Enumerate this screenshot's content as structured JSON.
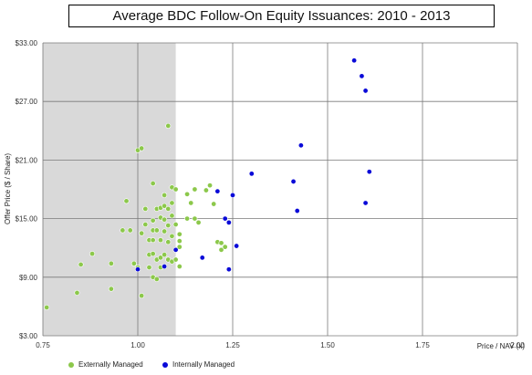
{
  "chart_data": {
    "type": "scatter",
    "title": "Average BDC Follow-On Equity Issuances: 2010 - 2013",
    "xlabel": "Price / NAV (x)",
    "ylabel": "Offer Price ($ / Share)",
    "xlim": [
      0.75,
      2.0
    ],
    "ylim": [
      3.0,
      33.0
    ],
    "x_ticks": [
      0.75,
      1.0,
      1.25,
      1.5,
      1.75,
      2.0
    ],
    "x_tick_labels": [
      "0.75",
      "1.00",
      "1.25",
      "1.50",
      "1.75",
      "2.00"
    ],
    "y_ticks": [
      3,
      9,
      15,
      21,
      27,
      33
    ],
    "y_tick_labels": [
      "$3.00",
      "$9.00",
      "$15.00",
      "$21.00",
      "$27.00",
      "$33.00"
    ],
    "grid": true,
    "shaded_region": {
      "x_from": 0.75,
      "x_to": 1.1,
      "color": "#d9d9d9"
    },
    "legend_position": "bottom-left",
    "series": [
      {
        "name": "Externally Managed",
        "color": "#8cc84b",
        "points": [
          [
            0.76,
            5.9
          ],
          [
            0.84,
            7.4
          ],
          [
            0.85,
            10.3
          ],
          [
            0.88,
            11.4
          ],
          [
            0.93,
            10.4
          ],
          [
            0.93,
            7.8
          ],
          [
            0.96,
            13.8
          ],
          [
            0.97,
            16.8
          ],
          [
            0.98,
            13.8
          ],
          [
            0.99,
            10.4
          ],
          [
            1.0,
            22.0
          ],
          [
            1.01,
            22.2
          ],
          [
            1.0,
            10.0
          ],
          [
            1.01,
            13.5
          ],
          [
            1.01,
            7.1
          ],
          [
            1.02,
            16.0
          ],
          [
            1.02,
            14.4
          ],
          [
            1.03,
            12.8
          ],
          [
            1.03,
            11.3
          ],
          [
            1.03,
            10.0
          ],
          [
            1.04,
            18.6
          ],
          [
            1.04,
            14.8
          ],
          [
            1.04,
            13.8
          ],
          [
            1.04,
            12.8
          ],
          [
            1.04,
            11.4
          ],
          [
            1.04,
            9.0
          ],
          [
            1.05,
            16.0
          ],
          [
            1.05,
            13.8
          ],
          [
            1.05,
            10.8
          ],
          [
            1.05,
            8.8
          ],
          [
            1.06,
            16.1
          ],
          [
            1.06,
            15.1
          ],
          [
            1.06,
            12.8
          ],
          [
            1.06,
            11.0
          ],
          [
            1.06,
            10.0
          ],
          [
            1.07,
            17.4
          ],
          [
            1.07,
            16.3
          ],
          [
            1.07,
            14.9
          ],
          [
            1.07,
            13.7
          ],
          [
            1.07,
            11.3
          ],
          [
            1.08,
            24.5
          ],
          [
            1.08,
            16.0
          ],
          [
            1.08,
            14.3
          ],
          [
            1.08,
            12.6
          ],
          [
            1.08,
            10.8
          ],
          [
            1.09,
            18.2
          ],
          [
            1.09,
            16.6
          ],
          [
            1.09,
            15.3
          ],
          [
            1.09,
            13.2
          ],
          [
            1.09,
            10.6
          ],
          [
            1.1,
            18.0
          ],
          [
            1.1,
            14.4
          ],
          [
            1.11,
            13.4
          ],
          [
            1.11,
            12.7
          ],
          [
            1.11,
            12.1
          ],
          [
            1.1,
            10.8
          ],
          [
            1.11,
            10.1
          ],
          [
            1.13,
            17.5
          ],
          [
            1.13,
            15.0
          ],
          [
            1.14,
            16.6
          ],
          [
            1.15,
            18.0
          ],
          [
            1.15,
            15.0
          ],
          [
            1.16,
            14.6
          ],
          [
            1.18,
            17.9
          ],
          [
            1.19,
            18.4
          ],
          [
            1.2,
            16.5
          ],
          [
            1.21,
            12.6
          ],
          [
            1.22,
            11.8
          ],
          [
            1.22,
            12.5
          ],
          [
            1.23,
            12.1
          ]
        ]
      },
      {
        "name": "Internally Managed",
        "color": "#0a0ad8",
        "points": [
          [
            1.0,
            9.8
          ],
          [
            1.07,
            10.1
          ],
          [
            1.1,
            11.8
          ],
          [
            1.17,
            11.0
          ],
          [
            1.21,
            17.8
          ],
          [
            1.23,
            15.0
          ],
          [
            1.24,
            14.6
          ],
          [
            1.25,
            17.4
          ],
          [
            1.26,
            12.2
          ],
          [
            1.24,
            9.8
          ],
          [
            1.3,
            19.6
          ],
          [
            1.41,
            18.8
          ],
          [
            1.42,
            15.8
          ],
          [
            1.43,
            22.5
          ],
          [
            1.57,
            31.2
          ],
          [
            1.59,
            29.6
          ],
          [
            1.6,
            28.1
          ],
          [
            1.6,
            16.6
          ],
          [
            1.61,
            19.8
          ]
        ]
      }
    ]
  }
}
